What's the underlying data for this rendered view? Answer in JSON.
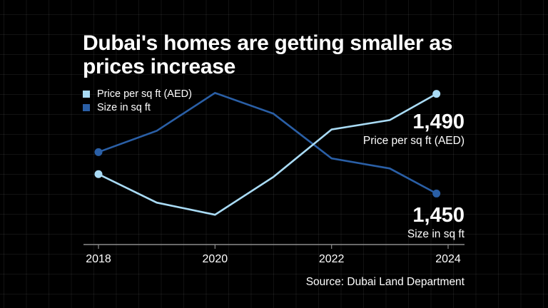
{
  "chart_data": {
    "type": "line",
    "title": "Dubai's homes are getting smaller as prices increase",
    "xlabel": "",
    "ylabel": "",
    "x_ticks": [
      "2018",
      "2020",
      "2022",
      "2024"
    ],
    "xlim": [
      2018,
      2024
    ],
    "grid": false,
    "legend_position": "top-left",
    "series": [
      {
        "name": "Price per sq ft (AED)",
        "color": "#a9dbf5",
        "x": [
          2018,
          2019,
          2020,
          2021,
          2022,
          2023,
          2023.8
        ],
        "values": [
          1098,
          959,
          900,
          1084,
          1316,
          1362,
          1490
        ],
        "ylim": [
          765,
          1600
        ],
        "end_label_value": "1,490",
        "end_label_text": "Price per sq ft (AED)"
      },
      {
        "name": "Size in sq ft",
        "color": "#2a5fa6",
        "x": [
          2018,
          2019,
          2020,
          2021,
          2022,
          2023,
          2023.8
        ],
        "values": [
          1594,
          1668,
          1800,
          1728,
          1572,
          1537,
          1450
        ],
        "ylim": [
          1280,
          1875
        ],
        "end_label_value": "1,450",
        "end_label_text": "Size in sq ft"
      }
    ],
    "source": "Source: Dubai Land Department"
  },
  "colors": {
    "background": "#000000",
    "axis": "#8c8c8c",
    "text": "#ffffff"
  }
}
